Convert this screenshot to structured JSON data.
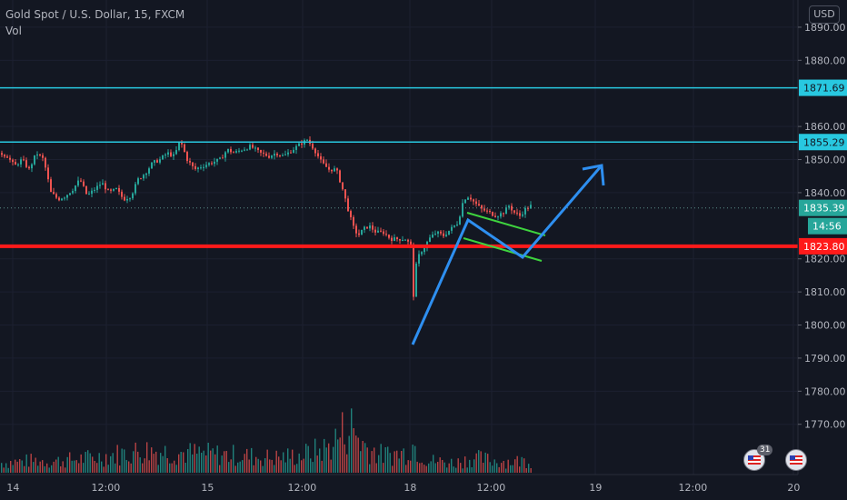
{
  "header": {
    "symbol_line": "Gold Spot / U.S. Dollar, 15, FXCM",
    "volume_label": "Vol",
    "currency_button": "USD"
  },
  "price_axis": {
    "ticks": [
      "1890.00",
      "1880.00",
      "1860.00",
      "1850.00",
      "1840.00",
      "1820.00",
      "1810.00",
      "1800.00",
      "1790.00",
      "1780.00",
      "1770.00"
    ],
    "tag_values": {
      "resistance_top": "1871.69",
      "resistance_mid": "1855.29",
      "last_price": "1835.39",
      "countdown": "14:56",
      "support": "1823.80"
    }
  },
  "time_axis": {
    "ticks": [
      "14",
      "12:00",
      "15",
      "12:00",
      "18",
      "12:00",
      "19",
      "12:00",
      "20"
    ]
  },
  "events": [
    {
      "count": "31"
    },
    {
      "count": ""
    }
  ],
  "colors": {
    "background": "#131722",
    "up": "#26a69a",
    "down": "#ef5350",
    "cyan_line": "#28c8e0",
    "support_line": "#ff1a1a",
    "arrow": "#2e8ff0",
    "flag": "#3ed33e"
  },
  "chart_data": {
    "type": "candlestick",
    "instrument": "Gold Spot / U.S. Dollar",
    "timeframe": "15",
    "source": "FXCM",
    "y_range": [
      1766,
      1894
    ],
    "horizontal_levels": [
      {
        "price": 1871.69,
        "color": "#28c8e0"
      },
      {
        "price": 1855.29,
        "color": "#28c8e0"
      },
      {
        "price": 1823.8,
        "color": "#ff1a1a"
      }
    ],
    "last_price": 1835.39,
    "price_path": [
      [
        0,
        1852
      ],
      [
        8,
        1851
      ],
      [
        16,
        1848
      ],
      [
        24,
        1850
      ],
      [
        32,
        1847
      ],
      [
        40,
        1852
      ],
      [
        48,
        1850
      ],
      [
        56,
        1840
      ],
      [
        64,
        1838
      ],
      [
        72,
        1839
      ],
      [
        80,
        1841
      ],
      [
        88,
        1844
      ],
      [
        96,
        1839
      ],
      [
        104,
        1841
      ],
      [
        112,
        1843
      ],
      [
        120,
        1840
      ],
      [
        128,
        1841
      ],
      [
        136,
        1838
      ],
      [
        144,
        1839
      ],
      [
        152,
        1844
      ],
      [
        160,
        1846
      ],
      [
        168,
        1849
      ],
      [
        176,
        1850
      ],
      [
        184,
        1852
      ],
      [
        192,
        1851
      ],
      [
        198,
        1856
      ],
      [
        206,
        1850
      ],
      [
        214,
        1847
      ],
      [
        222,
        1848
      ],
      [
        232,
        1849
      ],
      [
        242,
        1850
      ],
      [
        250,
        1853
      ],
      [
        258,
        1852
      ],
      [
        266,
        1853
      ],
      [
        276,
        1854
      ],
      [
        286,
        1852
      ],
      [
        296,
        1851
      ],
      [
        304,
        1852
      ],
      [
        312,
        1851
      ],
      [
        322,
        1853
      ],
      [
        332,
        1855
      ],
      [
        338,
        1856
      ],
      [
        346,
        1853
      ],
      [
        354,
        1849
      ],
      [
        362,
        1847
      ],
      [
        370,
        1847
      ],
      [
        376,
        1842
      ],
      [
        382,
        1836
      ],
      [
        388,
        1830
      ],
      [
        394,
        1827
      ],
      [
        400,
        1829
      ],
      [
        406,
        1830
      ],
      [
        414,
        1828
      ],
      [
        422,
        1828
      ],
      [
        430,
        1826
      ],
      [
        438,
        1826
      ],
      [
        446,
        1826
      ],
      [
        452,
        1824
      ],
      [
        455,
        1809
      ],
      [
        458,
        1818
      ],
      [
        462,
        1822
      ],
      [
        466,
        1823
      ],
      [
        472,
        1826
      ],
      [
        480,
        1828
      ],
      [
        488,
        1827
      ],
      [
        496,
        1829
      ],
      [
        504,
        1831
      ],
      [
        510,
        1838
      ],
      [
        516,
        1839
      ],
      [
        522,
        1837
      ],
      [
        530,
        1835
      ],
      [
        538,
        1834
      ],
      [
        546,
        1833
      ],
      [
        554,
        1834
      ],
      [
        560,
        1836
      ],
      [
        566,
        1834
      ],
      [
        572,
        1833
      ],
      [
        578,
        1835
      ],
      [
        584,
        1836
      ]
    ],
    "volume_profile": [
      [
        0,
        8
      ],
      [
        40,
        10
      ],
      [
        55,
        9
      ],
      [
        100,
        12
      ],
      [
        160,
        18
      ],
      [
        200,
        16
      ],
      [
        260,
        14
      ],
      [
        300,
        12
      ],
      [
        330,
        14
      ],
      [
        360,
        20
      ],
      [
        375,
        32
      ],
      [
        385,
        38
      ],
      [
        400,
        22
      ],
      [
        420,
        14
      ],
      [
        445,
        16
      ],
      [
        452,
        24
      ],
      [
        470,
        10
      ],
      [
        500,
        8
      ],
      [
        520,
        12
      ],
      [
        540,
        10
      ],
      [
        560,
        9
      ],
      [
        584,
        10
      ]
    ],
    "annotations": [
      {
        "type": "arrow",
        "color": "#2e8ff0",
        "points": [
          [
            1803,
            454
          ],
          [
            1838,
            510
          ],
          [
            1828,
            594
          ],
          [
            1855,
            660
          ]
        ]
      },
      {
        "type": "channel",
        "color": "#3ed33e",
        "upper": [
          [
            1841,
            514
          ],
          [
            1835,
            600
          ]
        ],
        "lower": [
          [
            1833,
            510
          ],
          [
            1826,
            596
          ]
        ]
      }
    ]
  }
}
